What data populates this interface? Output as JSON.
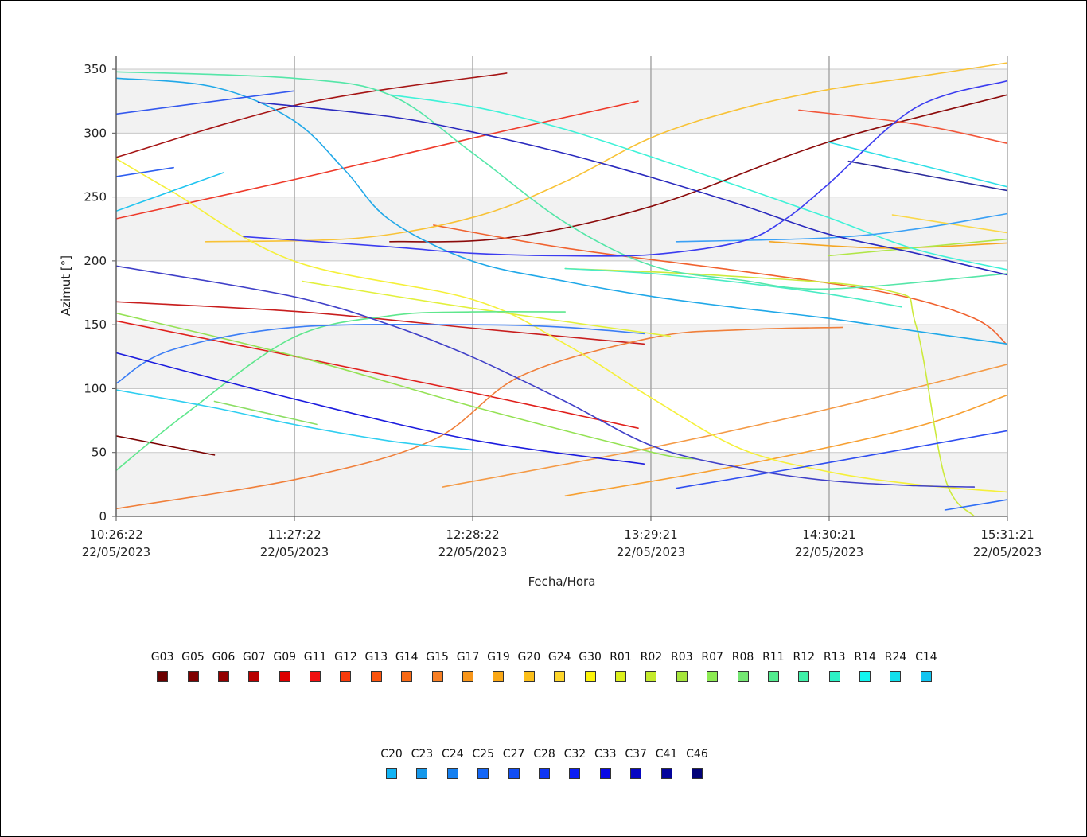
{
  "chart_data": {
    "type": "line",
    "title": "",
    "xlabel": "Fecha/Hora",
    "ylabel": "Azimut [°]",
    "ylim": [
      0,
      360
    ],
    "yticks": [
      0,
      50,
      100,
      150,
      200,
      250,
      300,
      350
    ],
    "x_range": [
      "22/05/2023 10:26:22",
      "22/05/2023 15:31:21"
    ],
    "xticks": [
      {
        "time": "10:26:22",
        "date": "22/05/2023"
      },
      {
        "time": "11:27:22",
        "date": "22/05/2023"
      },
      {
        "time": "12:28:22",
        "date": "22/05/2023"
      },
      {
        "time": "13:29:21",
        "date": "22/05/2023"
      },
      {
        "time": "14:30:21",
        "date": "22/05/2023"
      },
      {
        "time": "15:31:21",
        "date": "22/05/2023"
      }
    ],
    "grid": true,
    "legend_position": "bottom",
    "series": [
      {
        "name": "G03",
        "color": "#7a0000",
        "x": [
          "10:26:22",
          "11:00:00"
        ],
        "y": [
          63,
          48
        ]
      },
      {
        "name": "G05",
        "color": "#8b0a0a",
        "x": [
          "12:00:00",
          "12:40:00",
          "13:30:00",
          "14:30:00",
          "15:31:21"
        ],
        "y": [
          215,
          218,
          243,
          293,
          330
        ]
      },
      {
        "name": "G06",
        "color": "#a51414",
        "x": [
          "10:26:22",
          "11:30:00",
          "12:40:00"
        ],
        "y": [
          281,
          323,
          347
        ]
      },
      {
        "name": "G07",
        "color": "#c81e1e",
        "x": [
          "10:26:22",
          "11:30:00",
          "12:30:00",
          "13:27:00"
        ],
        "y": [
          168,
          160,
          147,
          135
        ]
      },
      {
        "name": "G09",
        "color": "#e0201c",
        "x": [
          "10:26:22",
          "11:30:00",
          "12:30:00",
          "13:25:00"
        ],
        "y": [
          153,
          124,
          96,
          69
        ]
      },
      {
        "name": "G11",
        "color": "#ee3a2a",
        "x": [
          "10:26:22",
          "11:30:00",
          "12:30:00",
          "13:25:00"
        ],
        "y": [
          233,
          265,
          297,
          325
        ]
      },
      {
        "name": "G12",
        "color": "#f2563a",
        "x": [
          "14:20:00",
          "15:00:00",
          "15:31:21"
        ],
        "y": [
          318,
          307,
          292
        ]
      },
      {
        "name": "G13",
        "color": "#f0622f",
        "x": [
          "12:15:00",
          "13:00:00",
          "14:00:00",
          "14:50:00",
          "15:20:00",
          "15:31:21"
        ],
        "y": [
          228,
          210,
          192,
          175,
          155,
          134
        ]
      },
      {
        "name": "G14",
        "color": "#f07f3a",
        "x": [
          "10:26:22",
          "11:30:00",
          "12:15:00",
          "12:45:00",
          "13:30:00",
          "14:00:00",
          "14:35:00"
        ],
        "y": [
          6,
          30,
          60,
          110,
          140,
          146,
          148
        ]
      },
      {
        "name": "G15",
        "color": "#f49a46",
        "x": [
          "12:18:00",
          "13:30:00",
          "14:30:00",
          "15:31:21"
        ],
        "y": [
          23,
          54,
          84,
          119
        ]
      },
      {
        "name": "G17",
        "color": "#f7a032",
        "x": [
          "13:00:00",
          "14:00:00",
          "15:00:00",
          "15:31:21"
        ],
        "y": [
          16,
          40,
          70,
          95
        ]
      },
      {
        "name": "G19",
        "color": "#f5a623",
        "x": [
          "14:10:00",
          "14:50:00",
          "15:31:21"
        ],
        "y": [
          215,
          210,
          214
        ]
      },
      {
        "name": "G20",
        "color": "#f8c236",
        "x": [
          "10:57:00",
          "11:50:00",
          "12:30:00",
          "13:00:00",
          "13:30:00",
          "14:00:00",
          "14:30:00",
          "15:00:00",
          "15:31:21"
        ],
        "y": [
          215,
          218,
          235,
          262,
          297,
          319,
          334,
          344,
          355
        ]
      },
      {
        "name": "G24",
        "color": "#fad84a",
        "x": [
          "14:52:00",
          "15:31:21"
        ],
        "y": [
          236,
          222
        ]
      },
      {
        "name": "G30",
        "color": "#f5f03a",
        "x": [
          "10:26:22",
          "10:45:00",
          "11:27:00",
          "12:28:00",
          "13:00:00",
          "13:30:00",
          "14:00:00",
          "14:30:00",
          "15:00:00",
          "15:31:21"
        ],
        "y": [
          280,
          255,
          200,
          170,
          135,
          92,
          53,
          35,
          25,
          19
        ]
      },
      {
        "name": "R01",
        "color": "#e2f03c",
        "x": [
          "11:30:00",
          "12:28:00",
          "13:36:00"
        ],
        "y": [
          184,
          163,
          141
        ]
      },
      {
        "name": "R02",
        "color": "#ccea3c",
        "x": [
          "13:00:00",
          "13:50:00",
          "14:50:00",
          "15:00:00",
          "15:10:00",
          "15:20:00"
        ],
        "y": [
          194,
          189,
          177,
          150,
          30,
          0
        ]
      },
      {
        "name": "R03",
        "color": "#b0e646",
        "x": [
          "14:30:00",
          "15:31:21"
        ],
        "y": [
          204,
          217
        ]
      },
      {
        "name": "R07",
        "color": "#95e255",
        "x": [
          "10:26:22",
          "11:30:00",
          "12:30:00",
          "13:30:00",
          "13:45:00"
        ],
        "y": [
          159,
          124,
          85,
          50,
          45
        ]
      },
      {
        "name": "R08",
        "color": "#8cde64",
        "x": [
          "11:00:00",
          "11:35:00"
        ],
        "y": [
          90,
          72
        ]
      },
      {
        "name": "R11",
        "color": "#5fe78d",
        "x": [
          "10:26:22",
          "10:50:00",
          "11:27:00",
          "12:00:00",
          "12:28:00",
          "13:00:00"
        ],
        "y": [
          36,
          80,
          140,
          157,
          160,
          160
        ]
      },
      {
        "name": "R12",
        "color": "#55e6a8",
        "x": [
          "10:26:22",
          "11:27:00",
          "12:00:00",
          "12:28:00",
          "13:00:00",
          "13:30:00",
          "14:00:00",
          "14:30:00",
          "15:31:21"
        ],
        "y": [
          348,
          343,
          330,
          285,
          230,
          196,
          185,
          178,
          190
        ]
      },
      {
        "name": "R13",
        "color": "#4aebc4",
        "x": [
          "13:00:00",
          "13:30:00",
          "14:00:00",
          "14:30:00",
          "14:55:00"
        ],
        "y": [
          194,
          190,
          183,
          174,
          164
        ]
      },
      {
        "name": "R14",
        "color": "#3ff2d8",
        "x": [
          "12:00:00",
          "12:30:00",
          "13:00:00",
          "13:30:00",
          "14:00:00",
          "14:30:00",
          "15:00:00",
          "15:31:21"
        ],
        "y": [
          330,
          320,
          303,
          281,
          258,
          234,
          209,
          193
        ]
      },
      {
        "name": "R24",
        "color": "#2fdfe6",
        "x": [
          "14:30:00",
          "15:31:21"
        ],
        "y": [
          293,
          258
        ]
      },
      {
        "name": "C14",
        "color": "#2fcef0",
        "x": [
          "10:26:22",
          "11:00:00",
          "11:27:00",
          "12:00:00",
          "12:28:00"
        ],
        "y": [
          99,
          85,
          72,
          59,
          52
        ]
      },
      {
        "name": "C20",
        "color": "#1fc4f0",
        "x": [
          "10:26:22",
          "11:03:00"
        ],
        "y": [
          239,
          269
        ]
      },
      {
        "name": "C23",
        "color": "#20a8e8",
        "x": [
          "10:26:22",
          "11:00:00",
          "11:27:00",
          "11:45:00",
          "12:00:00",
          "12:28:00",
          "13:00:00",
          "13:30:00",
          "14:00:00",
          "14:30:00",
          "15:00:00",
          "15:31:21"
        ],
        "y": [
          343,
          336,
          310,
          270,
          232,
          200,
          184,
          172,
          163,
          155,
          145,
          135
        ]
      },
      {
        "name": "C24",
        "color": "#3aa0f5",
        "x": [
          "13:38:00",
          "14:30:00",
          "15:00:00",
          "15:31:21"
        ],
        "y": [
          215,
          218,
          225,
          237
        ]
      },
      {
        "name": "C25",
        "color": "#3c7ef5",
        "x": [
          "10:26:22",
          "10:45:00",
          "11:27:00",
          "12:28:00",
          "13:00:00",
          "13:27:00"
        ],
        "y": [
          104,
          130,
          148,
          150,
          148,
          143
        ]
      },
      {
        "name": "C27",
        "color": "#3358ee",
        "x": [
          "10:26:22",
          "11:27:00"
        ],
        "y": [
          315,
          333
        ]
      },
      {
        "name": "C28",
        "color": "#2f4ef0",
        "x": [
          "13:38:00",
          "14:30:00",
          "15:31:21"
        ],
        "y": [
          22,
          42,
          67
        ]
      },
      {
        "name": "C32",
        "color": "#3b3cf0",
        "x": [
          "11:10:00",
          "12:00:00",
          "12:28:00",
          "13:00:00",
          "13:30:00",
          "14:00:00",
          "14:15:00",
          "14:30:00",
          "15:00:00",
          "15:31:21"
        ],
        "y": [
          219,
          211,
          206,
          204,
          205,
          215,
          232,
          260,
          320,
          341
        ]
      },
      {
        "name": "C33",
        "color": "#1c1cde",
        "x": [
          "10:26:22",
          "11:27:00",
          "12:28:00",
          "13:27:00"
        ],
        "y": [
          128,
          92,
          60,
          41
        ]
      },
      {
        "name": "C37",
        "color": "#4040c8",
        "x": [
          "10:26:22",
          "11:27:00",
          "12:00:00",
          "12:28:00",
          "13:00:00",
          "13:30:00",
          "14:00:00",
          "14:30:00",
          "15:00:00",
          "15:20:00"
        ],
        "y": [
          196,
          172,
          150,
          125,
          90,
          55,
          38,
          28,
          24,
          23
        ]
      },
      {
        "name": "C41",
        "color": "#2a2abe",
        "x": [
          "11:15:00",
          "12:00:00",
          "12:30:00",
          "13:00:00",
          "13:30:00",
          "14:00:00",
          "14:30:00",
          "15:00:00",
          "15:31:21"
        ],
        "y": [
          324,
          313,
          300,
          284,
          265,
          244,
          221,
          206,
          189
        ]
      },
      {
        "name": "C46",
        "color": "#2c2c9c",
        "x": [
          "14:37:00",
          "15:31:21"
        ],
        "y": [
          278,
          255
        ]
      },
      {
        "name": "",
        "color": "#2f6ef5",
        "x": [
          "15:10:00",
          "15:31:21"
        ],
        "y": [
          5,
          13
        ]
      },
      {
        "name": "",
        "color": "#2f5ff0",
        "x": [
          "10:26:22",
          "10:46:00"
        ],
        "y": [
          266,
          273
        ]
      }
    ]
  },
  "legend": {
    "row1": [
      {
        "label": "G03",
        "color": "#6b0000"
      },
      {
        "label": "G05",
        "color": "#7f0000"
      },
      {
        "label": "G06",
        "color": "#930000"
      },
      {
        "label": "G07",
        "color": "#b80000"
      },
      {
        "label": "G09",
        "color": "#dd0000"
      },
      {
        "label": "G11",
        "color": "#f01010"
      },
      {
        "label": "G12",
        "color": "#f73b0c"
      },
      {
        "label": "G13",
        "color": "#fb540e"
      },
      {
        "label": "G14",
        "color": "#f86a16"
      },
      {
        "label": "G15",
        "color": "#f77f24"
      },
      {
        "label": "G17",
        "color": "#f8961a"
      },
      {
        "label": "G19",
        "color": "#faa816"
      },
      {
        "label": "G20",
        "color": "#fbbf1a"
      },
      {
        "label": "G24",
        "color": "#fdd52a"
      },
      {
        "label": "G30",
        "color": "#fcf40a"
      },
      {
        "label": "R01",
        "color": "#dcf01c"
      },
      {
        "label": "R02",
        "color": "#c4ea2c"
      },
      {
        "label": "R03",
        "color": "#a6e63c"
      },
      {
        "label": "R07",
        "color": "#8cea52"
      },
      {
        "label": "R08",
        "color": "#74e672"
      },
      {
        "label": "R11",
        "color": "#52eb8e"
      },
      {
        "label": "R12",
        "color": "#3ff0a8"
      },
      {
        "label": "R13",
        "color": "#2cf2c6"
      },
      {
        "label": "R14",
        "color": "#12f5f0"
      },
      {
        "label": "R24",
        "color": "#12e0ec"
      },
      {
        "label": "C14",
        "color": "#12c4f0"
      }
    ],
    "row2": [
      {
        "label": "C20",
        "color": "#12b4f5"
      },
      {
        "label": "C23",
        "color": "#1698ea"
      },
      {
        "label": "C24",
        "color": "#1680f0"
      },
      {
        "label": "C25",
        "color": "#1466f5"
      },
      {
        "label": "C27",
        "color": "#124ef5"
      },
      {
        "label": "C28",
        "color": "#1036f5"
      },
      {
        "label": "C32",
        "color": "#0c1ef5"
      },
      {
        "label": "C33",
        "color": "#0808e6"
      },
      {
        "label": "C37",
        "color": "#0606c2"
      },
      {
        "label": "C41",
        "color": "#04049c"
      },
      {
        "label": "C46",
        "color": "#020278"
      }
    ]
  }
}
